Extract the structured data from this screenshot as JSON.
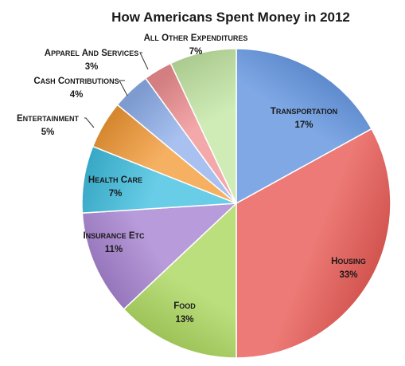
{
  "chart_data": {
    "type": "pie",
    "title": "How Americans Spent Money in 2012",
    "slices": [
      {
        "label": "Transportation",
        "value": 17,
        "value_label": "17%",
        "color": "#5b8fde"
      },
      {
        "label": "Housing",
        "value": 33,
        "value_label": "33%",
        "color": "#e8554f"
      },
      {
        "label": "Food",
        "value": 13,
        "value_label": "13%",
        "color": "#a9d65a"
      },
      {
        "label": "Insurance etc",
        "value": 11,
        "value_label": "11%",
        "color": "#a47fcf"
      },
      {
        "label": "Health care",
        "value": 7,
        "value_label": "7%",
        "color": "#3fbfe0"
      },
      {
        "label": "Entertainment",
        "value": 5,
        "value_label": "5%",
        "color": "#f39a36"
      },
      {
        "label": "Cash contributions",
        "value": 4,
        "value_label": "4%",
        "color": "#8fb0ec"
      },
      {
        "label": "Apparel and services",
        "value": 3,
        "value_label": "3%",
        "color": "#f08f92"
      },
      {
        "label": "All other expenditures",
        "value": 7,
        "value_label": "7%",
        "color": "#c2e6a3"
      }
    ]
  }
}
